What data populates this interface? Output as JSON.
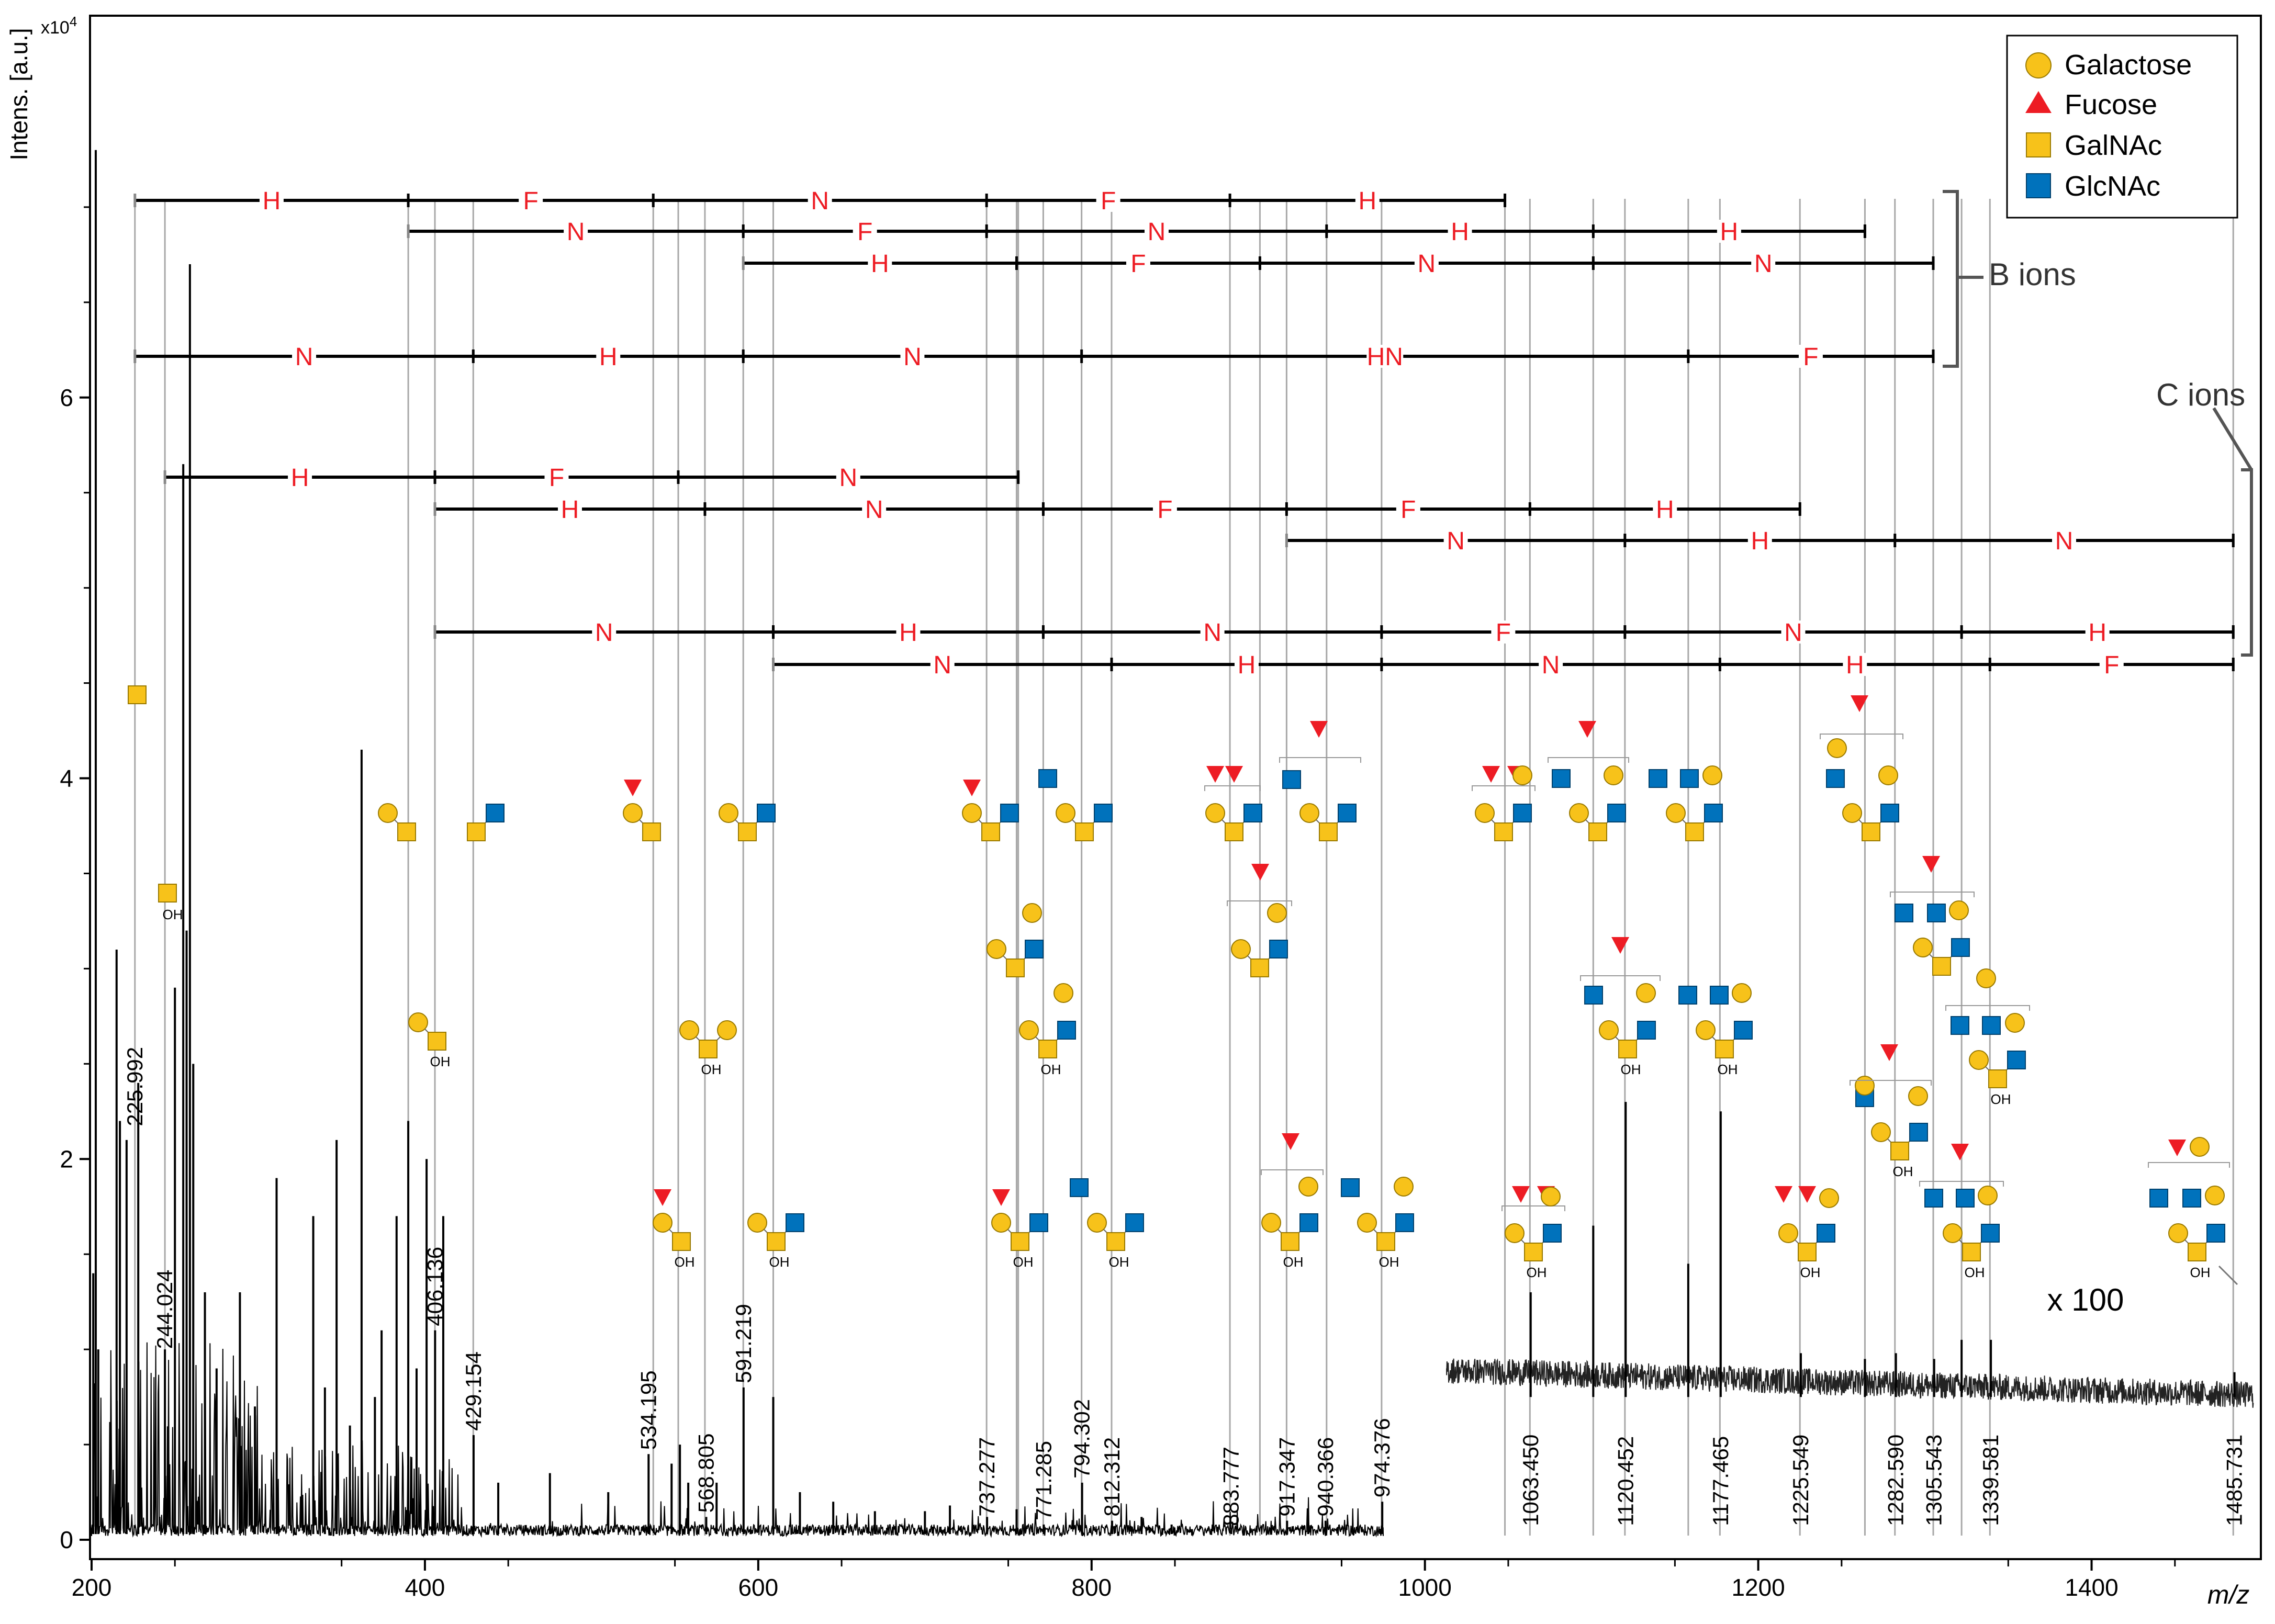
{
  "chart_data": {
    "type": "line",
    "title": "",
    "ylabel": "Intens. [a.u.]",
    "y_exponent_label": "x10",
    "y_exponent_power": "4",
    "xlabel": "m/z",
    "xlim": [
      200,
      1500
    ],
    "ylim": [
      0,
      8
    ],
    "x_ticks": [
      200,
      400,
      600,
      800,
      1000,
      1200,
      1400
    ],
    "y_ticks": [
      0,
      2,
      4,
      6
    ],
    "magnification_label": "x 100",
    "legend": [
      {
        "label": "Galactose",
        "shape": "circle",
        "color": "#F7C21A"
      },
      {
        "label": "Fucose",
        "shape": "triangle",
        "color": "#ED1C24"
      },
      {
        "label": "GalNAc",
        "shape": "square",
        "color": "#F7C21A"
      },
      {
        "label": "GlcNAc",
        "shape": "square",
        "color": "#0072BC"
      }
    ],
    "group_labels": {
      "b_ions": "B ions",
      "c_ions": "C ions"
    },
    "peak_labels": [
      {
        "label": "225.992",
        "x": 225.992,
        "y": 2.15
      },
      {
        "label": "244.024",
        "x": 244.024,
        "y": 0.98
      },
      {
        "label": "406.136",
        "x": 406.136,
        "y": 1.1
      },
      {
        "label": "429.154",
        "x": 429.154,
        "y": 0.55
      },
      {
        "label": "534.195",
        "x": 534.195,
        "y": 0.45
      },
      {
        "label": "568.805",
        "x": 568.805,
        "y": 0.12
      },
      {
        "label": "591.219",
        "x": 591.219,
        "y": 0.8
      },
      {
        "label": "737.277",
        "x": 737.277,
        "y": 0.1
      },
      {
        "label": "771.285",
        "x": 771.285,
        "y": 0.08
      },
      {
        "label": "794.302",
        "x": 794.302,
        "y": 0.3
      },
      {
        "label": "812.312",
        "x": 812.312,
        "y": 0.1
      },
      {
        "label": "883.777",
        "x": 883.777,
        "y": 0.05
      },
      {
        "label": "917.347",
        "x": 917.347,
        "y": 0.1
      },
      {
        "label": "940.366",
        "x": 940.366,
        "y": 0.1
      },
      {
        "label": "974.376",
        "x": 974.376,
        "y": 0.2
      },
      {
        "label": "1063.450",
        "x": 1063.45,
        "y": 0.05
      },
      {
        "label": "1120.452",
        "x": 1120.452,
        "y": 0.05
      },
      {
        "label": "1177.465",
        "x": 1177.465,
        "y": 0.05
      },
      {
        "label": "1225.549",
        "x": 1225.549,
        "y": 0.05
      },
      {
        "label": "1282.590",
        "x": 1282.59,
        "y": 0.05
      },
      {
        "label": "1305.543",
        "x": 1305.543,
        "y": 0.05
      },
      {
        "label": "1339.581",
        "x": 1339.581,
        "y": 0.05
      },
      {
        "label": "1485.731",
        "x": 1485.731,
        "y": 0.05
      }
    ],
    "major_peaks": [
      {
        "x": 201,
        "y": 1.4
      },
      {
        "x": 202.5,
        "y": 7.3
      },
      {
        "x": 204,
        "y": 1.0
      },
      {
        "x": 215,
        "y": 3.1
      },
      {
        "x": 217,
        "y": 2.2
      },
      {
        "x": 221,
        "y": 2.1
      },
      {
        "x": 228,
        "y": 2.4
      },
      {
        "x": 244,
        "y": 1.0
      },
      {
        "x": 250,
        "y": 2.9
      },
      {
        "x": 255,
        "y": 5.65
      },
      {
        "x": 257,
        "y": 3.2
      },
      {
        "x": 259,
        "y": 6.7
      },
      {
        "x": 261,
        "y": 2.5
      },
      {
        "x": 268,
        "y": 1.3
      },
      {
        "x": 275,
        "y": 0.9
      },
      {
        "x": 289,
        "y": 1.3
      },
      {
        "x": 298,
        "y": 0.7
      },
      {
        "x": 311,
        "y": 1.9
      },
      {
        "x": 333,
        "y": 1.7
      },
      {
        "x": 340,
        "y": 0.8
      },
      {
        "x": 347,
        "y": 2.1
      },
      {
        "x": 355,
        "y": 0.6
      },
      {
        "x": 362,
        "y": 4.15
      },
      {
        "x": 370,
        "y": 0.75
      },
      {
        "x": 374,
        "y": 1.1
      },
      {
        "x": 383,
        "y": 1.7
      },
      {
        "x": 390,
        "y": 2.2
      },
      {
        "x": 395,
        "y": 0.9
      },
      {
        "x": 401,
        "y": 2.0
      },
      {
        "x": 406.1,
        "y": 1.1
      },
      {
        "x": 411,
        "y": 1.7
      },
      {
        "x": 429.2,
        "y": 0.55
      },
      {
        "x": 444,
        "y": 0.3
      },
      {
        "x": 475,
        "y": 0.35
      },
      {
        "x": 510,
        "y": 0.25
      },
      {
        "x": 534.2,
        "y": 0.45
      },
      {
        "x": 548,
        "y": 0.4
      },
      {
        "x": 553,
        "y": 0.5
      },
      {
        "x": 558,
        "y": 0.3
      },
      {
        "x": 568.8,
        "y": 0.12
      },
      {
        "x": 575,
        "y": 0.3
      },
      {
        "x": 591.2,
        "y": 0.8
      },
      {
        "x": 609,
        "y": 0.75
      },
      {
        "x": 625,
        "y": 0.25
      },
      {
        "x": 645,
        "y": 0.2
      },
      {
        "x": 670,
        "y": 0.15
      },
      {
        "x": 700,
        "y": 0.15
      },
      {
        "x": 715,
        "y": 0.18
      },
      {
        "x": 737.3,
        "y": 0.12
      },
      {
        "x": 755,
        "y": 0.16
      },
      {
        "x": 771.3,
        "y": 0.08
      },
      {
        "x": 794.3,
        "y": 0.3
      },
      {
        "x": 812.3,
        "y": 0.1
      },
      {
        "x": 830,
        "y": 0.12
      },
      {
        "x": 848,
        "y": 0.08
      },
      {
        "x": 883.8,
        "y": 0.05
      },
      {
        "x": 917.3,
        "y": 0.1
      },
      {
        "x": 930,
        "y": 0.09
      },
      {
        "x": 940.4,
        "y": 0.1
      },
      {
        "x": 974.4,
        "y": 0.2
      },
      {
        "x": 1063.45,
        "y": 1.3
      },
      {
        "x": 1101,
        "y": 1.65
      },
      {
        "x": 1120.45,
        "y": 2.3
      },
      {
        "x": 1158,
        "y": 1.45
      },
      {
        "x": 1177.47,
        "y": 2.25
      },
      {
        "x": 1225.55,
        "y": 0.98
      },
      {
        "x": 1264,
        "y": 0.95
      },
      {
        "x": 1282.59,
        "y": 0.98
      },
      {
        "x": 1305.54,
        "y": 0.95
      },
      {
        "x": 1322,
        "y": 1.05
      },
      {
        "x": 1339.58,
        "y": 1.05
      },
      {
        "x": 1485.73,
        "y": 0.88
      }
    ],
    "b_ion_ladders": [
      {
        "start": 226,
        "points": [
          226,
          390,
          537,
          737,
          883,
          1048
        ],
        "labels": [
          "H",
          "F",
          "N",
          "F",
          "H"
        ]
      },
      {
        "start": 390,
        "points": [
          390,
          591,
          737,
          941,
          1101,
          1264
        ],
        "labels": [
          "N",
          "F",
          "N",
          "H",
          "H"
        ]
      },
      {
        "start": 591,
        "points": [
          591,
          755,
          901,
          1101,
          1305
        ],
        "labels": [
          "H",
          "F",
          "N",
          "N"
        ]
      },
      {
        "start": 226,
        "points": [
          226,
          429,
          591,
          794,
          1158,
          1305
        ],
        "labels": [
          "N",
          "H",
          "N",
          "HN",
          "F"
        ]
      }
    ],
    "c_ion_ladders": [
      {
        "start": 244,
        "points": [
          244,
          406,
          552,
          756
        ],
        "labels": [
          "H",
          "F",
          "N"
        ]
      },
      {
        "start": 406,
        "points": [
          406,
          568,
          771,
          917,
          1063,
          1225
        ],
        "labels": [
          "H",
          "N",
          "F",
          "F",
          "H"
        ]
      },
      {
        "start": 917,
        "points": [
          917,
          1120,
          1282,
          1485
        ],
        "labels": [
          "N",
          "H",
          "N"
        ]
      },
      {
        "start": 406,
        "points": [
          406,
          609,
          771,
          974,
          1120,
          1322,
          1485
        ],
        "labels": [
          "N",
          "H",
          "N",
          "F",
          "N",
          "H"
        ]
      },
      {
        "start": 609,
        "points": [
          609,
          812,
          974,
          1177,
          1339,
          1485
        ],
        "labels": [
          "N",
          "H",
          "N",
          "H",
          "F"
        ]
      }
    ]
  }
}
